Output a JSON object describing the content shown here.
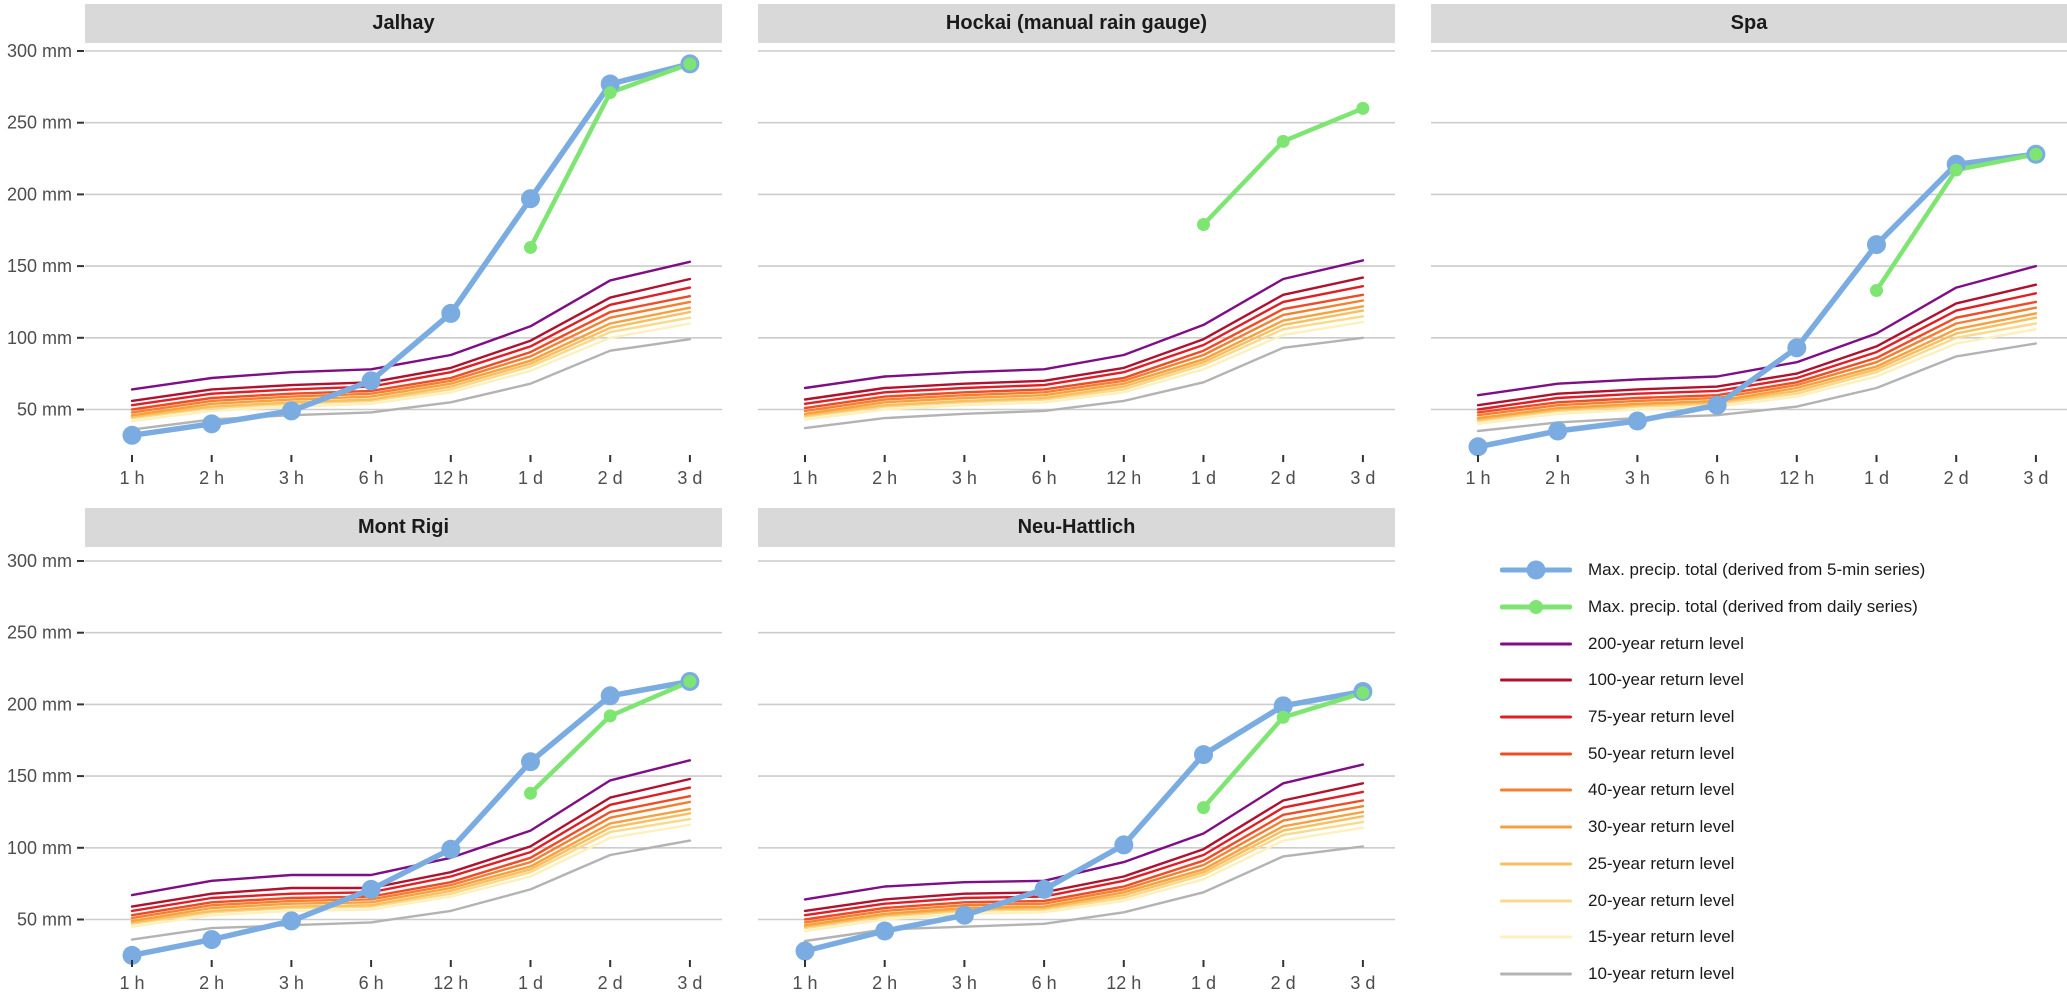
{
  "chart_data": {
    "type": "line",
    "description": "Faceted precipitation duration plot: maximum precipitation totals per duration vs. return levels, for five stations",
    "x_categories": [
      "1 h",
      "2 h",
      "3 h",
      "6 h",
      "12 h",
      "1 d",
      "2 d",
      "3 d"
    ],
    "y_tick_values": [
      300,
      250,
      200,
      150,
      100,
      50
    ],
    "y_tick_labels": [
      "300 mm",
      "250 mm",
      "200 mm",
      "150 mm",
      "100 mm",
      "50 mm"
    ],
    "ylim": [
      20,
      310
    ],
    "unit": "mm",
    "grid": "horizontal-only",
    "legend_position": "bottom-right",
    "return_order": [
      "r200",
      "r100",
      "r75",
      "r50",
      "r40",
      "r30",
      "r25",
      "r20",
      "r15",
      "r10"
    ],
    "colors": {
      "five_min": "#7AACE2",
      "daily": "#7EE573",
      "r200": "#7F0D86",
      "r100": "#AF1130",
      "r75": "#E01F24",
      "r50": "#EF4C26",
      "r40": "#F47F2E",
      "r30": "#F7A03F",
      "r25": "#F9BE5F",
      "r20": "#FBD98A",
      "r15": "#FCF0BC",
      "r10": "#B3B3B3",
      "grid": "#CCCCCC",
      "strip_bg": "#D9D9D9",
      "axis_text": "#4D4D4D",
      "tick_mark": "#333333"
    },
    "panels": [
      {
        "title": "Jalhay",
        "five_min": [
          32,
          40,
          49,
          70,
          117,
          197,
          277,
          291
        ],
        "daily": [
          null,
          null,
          null,
          null,
          null,
          163,
          271,
          291
        ],
        "returns": {
          "r200": [
            64,
            72,
            76,
            78,
            88,
            108,
            140,
            153
          ],
          "r100": [
            56,
            64,
            67,
            69,
            79,
            98,
            128,
            141
          ],
          "r75": [
            53,
            61,
            64,
            66,
            76,
            94,
            123,
            135
          ],
          "r50": [
            50,
            58,
            61,
            63,
            72,
            90,
            118,
            129
          ],
          "r40": [
            48,
            56,
            59,
            61,
            70,
            87,
            114,
            125
          ],
          "r30": [
            46,
            54,
            57,
            59,
            68,
            84,
            110,
            121
          ],
          "r25": [
            45,
            52,
            55,
            57,
            66,
            82,
            107,
            118
          ],
          "r20": [
            44,
            51,
            54,
            56,
            64,
            80,
            104,
            114
          ],
          "r15": [
            42,
            49,
            52,
            54,
            62,
            77,
            100,
            110
          ],
          "r10": [
            36,
            43,
            46,
            48,
            55,
            68,
            91,
            99
          ]
        }
      },
      {
        "title": "Hockai (manual rain gauge)",
        "five_min": null,
        "daily": [
          null,
          null,
          null,
          null,
          null,
          179,
          237,
          260
        ],
        "returns": {
          "r200": [
            65,
            73,
            76,
            78,
            88,
            109,
            141,
            154
          ],
          "r100": [
            57,
            65,
            68,
            70,
            79,
            99,
            130,
            142
          ],
          "r75": [
            54,
            62,
            65,
            67,
            76,
            95,
            125,
            136
          ],
          "r50": [
            51,
            59,
            62,
            64,
            72,
            91,
            120,
            130
          ],
          "r40": [
            49,
            57,
            60,
            62,
            70,
            88,
            116,
            126
          ],
          "r30": [
            47,
            55,
            58,
            60,
            68,
            85,
            112,
            122
          ],
          "r25": [
            46,
            53,
            56,
            58,
            66,
            83,
            109,
            119
          ],
          "r20": [
            45,
            52,
            55,
            57,
            64,
            81,
            106,
            115
          ],
          "r15": [
            43,
            50,
            53,
            55,
            62,
            78,
            102,
            111
          ],
          "r10": [
            37,
            44,
            47,
            49,
            56,
            69,
            93,
            100
          ]
        }
      },
      {
        "title": "Spa",
        "five_min": [
          24,
          35,
          42,
          53,
          93,
          165,
          221,
          228
        ],
        "daily": [
          null,
          null,
          null,
          null,
          null,
          133,
          217,
          228
        ],
        "returns": {
          "r200": [
            60,
            68,
            71,
            73,
            83,
            103,
            135,
            150
          ],
          "r100": [
            53,
            61,
            64,
            66,
            75,
            94,
            124,
            137
          ],
          "r75": [
            50,
            58,
            61,
            63,
            72,
            90,
            119,
            131
          ],
          "r50": [
            48,
            55,
            58,
            60,
            69,
            86,
            114,
            125
          ],
          "r40": [
            46,
            53,
            56,
            58,
            67,
            83,
            110,
            121
          ],
          "r30": [
            44,
            51,
            54,
            56,
            65,
            80,
            106,
            117
          ],
          "r25": [
            43,
            50,
            53,
            55,
            63,
            78,
            103,
            114
          ],
          "r20": [
            42,
            49,
            52,
            54,
            61,
            76,
            100,
            110
          ],
          "r15": [
            40,
            47,
            50,
            52,
            59,
            73,
            96,
            106
          ],
          "r10": [
            35,
            41,
            44,
            46,
            52,
            65,
            87,
            96
          ]
        }
      },
      {
        "title": "Mont Rigi",
        "five_min": [
          25,
          36,
          49,
          71,
          99,
          160,
          206,
          216
        ],
        "daily": [
          null,
          null,
          null,
          null,
          null,
          138,
          192,
          216
        ],
        "returns": {
          "r200": [
            67,
            77,
            81,
            81,
            93,
            112,
            147,
            161
          ],
          "r100": [
            59,
            68,
            72,
            72,
            83,
            101,
            135,
            148
          ],
          "r75": [
            56,
            65,
            68,
            69,
            80,
            97,
            130,
            142
          ],
          "r50": [
            53,
            62,
            65,
            66,
            76,
            93,
            125,
            136
          ],
          "r40": [
            51,
            60,
            63,
            64,
            74,
            90,
            121,
            132
          ],
          "r30": [
            49,
            58,
            61,
            62,
            72,
            87,
            117,
            127
          ],
          "r25": [
            48,
            56,
            59,
            60,
            70,
            85,
            114,
            124
          ],
          "r20": [
            47,
            55,
            58,
            59,
            68,
            83,
            111,
            120
          ],
          "r15": [
            45,
            53,
            56,
            57,
            66,
            80,
            107,
            116
          ],
          "r10": [
            36,
            44,
            46,
            48,
            56,
            71,
            95,
            105
          ]
        }
      },
      {
        "title": "Neu-Hattlich",
        "five_min": [
          28,
          42,
          53,
          71,
          102,
          165,
          199,
          209
        ],
        "daily": [
          null,
          null,
          null,
          null,
          null,
          128,
          191,
          208
        ],
        "returns": {
          "r200": [
            64,
            73,
            76,
            77,
            90,
            110,
            145,
            158
          ],
          "r100": [
            56,
            64,
            68,
            69,
            80,
            99,
            133,
            145
          ],
          "r75": [
            53,
            61,
            65,
            66,
            77,
            95,
            128,
            139
          ],
          "r50": [
            50,
            58,
            62,
            63,
            73,
            91,
            123,
            133
          ],
          "r40": [
            48,
            56,
            60,
            61,
            71,
            88,
            119,
            129
          ],
          "r30": [
            46,
            54,
            58,
            59,
            69,
            85,
            115,
            125
          ],
          "r25": [
            45,
            53,
            57,
            58,
            67,
            83,
            112,
            122
          ],
          "r20": [
            44,
            52,
            56,
            57,
            65,
            81,
            109,
            118
          ],
          "r15": [
            42,
            50,
            54,
            55,
            63,
            78,
            105,
            114
          ],
          "r10": [
            35,
            43,
            45,
            47,
            55,
            69,
            94,
            101
          ]
        }
      }
    ],
    "legend": {
      "items": [
        {
          "label": "Max. precip. total (derived from 5-min series)",
          "series": "five_min",
          "marker": true
        },
        {
          "label": "Max. precip. total (derived from daily series)",
          "series": "daily",
          "marker": true
        },
        {
          "label": "200-year return level",
          "series": "r200"
        },
        {
          "label": "100-year return level",
          "series": "r100"
        },
        {
          "label": "75-year return level",
          "series": "r75"
        },
        {
          "label": "50-year return level",
          "series": "r50"
        },
        {
          "label": "40-year return level",
          "series": "r40"
        },
        {
          "label": "30-year return level",
          "series": "r30"
        },
        {
          "label": "25-year return level",
          "series": "r25"
        },
        {
          "label": "20-year return level",
          "series": "r20"
        },
        {
          "label": "15-year return level",
          "series": "r15"
        },
        {
          "label": "10-year return level",
          "series": "r10"
        }
      ]
    }
  }
}
